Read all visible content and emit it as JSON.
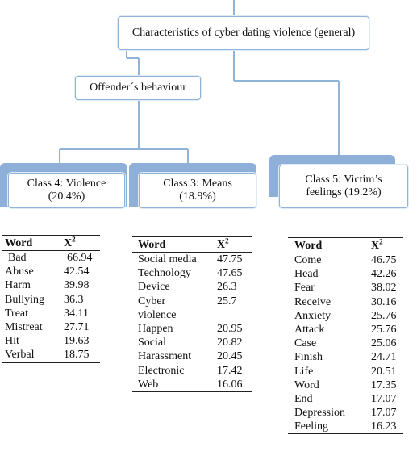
{
  "diagram": {
    "root": "Characteristics of cyber dating violence (general)",
    "offender": "Offender´s behaviour",
    "class4": "Class 4: Violence (20.4%)",
    "class3": "Class 3: Means (18.9%)",
    "class5": "Class 5: Victim’s feelings (19.2%)"
  },
  "colors": {
    "box_border": "#8fb3d9",
    "tab_fill": "#8eafd8",
    "line": "#8fb3d9"
  },
  "tables": {
    "header_word": "Word",
    "header_x2": "X",
    "header_x2_sup": "2",
    "class4": [
      {
        "word": "Bad",
        "value": "66.94"
      },
      {
        "word": "Abuse",
        "value": "42.54"
      },
      {
        "word": "Harm",
        "value": "39.98"
      },
      {
        "word": "Bullying",
        "value": "36.3"
      },
      {
        "word": "Treat",
        "value": "34.11"
      },
      {
        "word": "Mistreat",
        "value": "27.71"
      },
      {
        "word": "Hit",
        "value": "19.63"
      },
      {
        "word": "Verbal",
        "value": "18.75"
      }
    ],
    "class3": [
      {
        "word": "Social media",
        "value": "47.75"
      },
      {
        "word": "Technology",
        "value": "47.65"
      },
      {
        "word": "Device",
        "value": "26.3"
      },
      {
        "word": "Cyber",
        "value": "25.7"
      },
      {
        "word": "violence",
        "value": ""
      },
      {
        "word": "Happen",
        "value": "20.95"
      },
      {
        "word": "Social",
        "value": "20.82"
      },
      {
        "word": "Harassment",
        "value": "20.45"
      },
      {
        "word": "Electronic",
        "value": "17.42"
      },
      {
        "word": "Web",
        "value": "16.06"
      }
    ],
    "class5": [
      {
        "word": "Come",
        "value": "46.75"
      },
      {
        "word": "Head",
        "value": "42.26"
      },
      {
        "word": "Fear",
        "value": "38.02"
      },
      {
        "word": "Receive",
        "value": "30.16"
      },
      {
        "word": "Anxiety",
        "value": "25.76"
      },
      {
        "word": "Attack",
        "value": "25.76"
      },
      {
        "word": "Case",
        "value": "25.06"
      },
      {
        "word": "Finish",
        "value": "24.71"
      },
      {
        "word": "Life",
        "value": "20.51"
      },
      {
        "word": "Word",
        "value": "17.35"
      },
      {
        "word": "End",
        "value": "17.07"
      },
      {
        "word": "Depression",
        "value": "17.07"
      },
      {
        "word": "Feeling",
        "value": "16.23"
      }
    ]
  }
}
